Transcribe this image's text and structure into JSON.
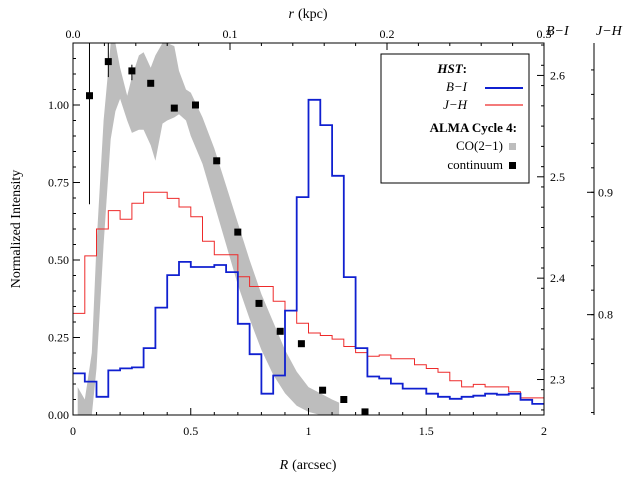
{
  "chart_data": {
    "type": "line",
    "xlabel": "R (arcsec)",
    "xlabel_var": "R",
    "xlabel_unit": "(arcsec)",
    "ylabel": "Normalized Intensity",
    "top_xlabel_var": "r",
    "top_xlabel_unit": "(kpc)",
    "right_axis_1_label": "B−I",
    "right_axis_2_label": "J−H",
    "xlim": [
      0,
      2
    ],
    "ylim": [
      0,
      1.2
    ],
    "top_xlim": [
      0,
      0.3
    ],
    "right1_ylim": [
      2.265,
      2.632
    ],
    "right2_ylim": [
      0.718,
      1.022
    ],
    "x_ticks": [
      "0",
      "0.5",
      "1",
      "1.5",
      "2"
    ],
    "y_ticks": [
      "0.00",
      "0.25",
      "0.50",
      "0.75",
      "1.00"
    ],
    "top_ticks": [
      "0.0",
      "0.1",
      "0.2",
      "0.3"
    ],
    "right1_ticks": [
      "2.3",
      "2.4",
      "2.5",
      "2.6"
    ],
    "right2_ticks": [
      "0.8",
      "0.9"
    ],
    "legend": {
      "position": "top-right",
      "group1_title": "HST",
      "group1_title_suffix": ":",
      "bi_label": "B−I",
      "jh_label": "J−H",
      "group2_title": "ALMA Cycle 4:",
      "co_label": "CO(2−1)",
      "cont_label": "continuum"
    },
    "colors": {
      "bi": "#1020d0",
      "jh": "#ee2a2a",
      "co": "#bdbdbd",
      "continuum": "#000000"
    },
    "series": [
      {
        "name": "B−I",
        "axis": "right1",
        "step": true,
        "x": [
          0,
          0.05,
          0.1,
          0.15,
          0.2,
          0.25,
          0.3,
          0.35,
          0.4,
          0.45,
          0.5,
          0.55,
          0.6,
          0.65,
          0.7,
          0.75,
          0.8,
          0.85,
          0.9,
          0.95,
          1.0,
          1.05,
          1.1,
          1.15,
          1.2,
          1.25,
          1.3,
          1.35,
          1.4,
          1.45,
          1.5,
          1.55,
          1.6,
          1.65,
          1.7,
          1.75,
          1.8,
          1.85,
          1.9,
          1.95,
          2.0
        ],
        "values": [
          2.306,
          2.298,
          2.283,
          2.309,
          2.311,
          2.312,
          2.331,
          2.371,
          2.403,
          2.416,
          2.411,
          2.411,
          2.413,
          2.406,
          2.355,
          2.325,
          2.286,
          2.304,
          2.368,
          2.48,
          2.576,
          2.551,
          2.501,
          2.401,
          2.331,
          2.303,
          2.301,
          2.296,
          2.291,
          2.291,
          2.286,
          2.283,
          2.281,
          2.283,
          2.284,
          2.286,
          2.285,
          2.286,
          2.28,
          2.276,
          2.276
        ]
      },
      {
        "name": "J−H",
        "axis": "right2",
        "step": true,
        "x": [
          0,
          0.05,
          0.1,
          0.15,
          0.2,
          0.25,
          0.3,
          0.35,
          0.4,
          0.45,
          0.5,
          0.55,
          0.6,
          0.65,
          0.7,
          0.75,
          0.8,
          0.85,
          0.9,
          0.95,
          1.0,
          1.05,
          1.1,
          1.15,
          1.2,
          1.25,
          1.3,
          1.35,
          1.4,
          1.45,
          1.5,
          1.55,
          1.6,
          1.65,
          1.7,
          1.75,
          1.8,
          1.85,
          1.9,
          1.95,
          2.0
        ],
        "values": [
          0.801,
          0.848,
          0.87,
          0.885,
          0.878,
          0.891,
          0.9,
          0.9,
          0.895,
          0.888,
          0.88,
          0.86,
          0.849,
          0.849,
          0.831,
          0.823,
          0.823,
          0.811,
          0.803,
          0.793,
          0.785,
          0.783,
          0.78,
          0.774,
          0.769,
          0.766,
          0.767,
          0.764,
          0.764,
          0.759,
          0.756,
          0.753,
          0.746,
          0.741,
          0.743,
          0.741,
          0.741,
          0.737,
          0.732,
          0.732,
          0.732
        ]
      },
      {
        "name": "CO(2−1)",
        "axis": "left",
        "band": true,
        "x": [
          0.02,
          0.05,
          0.08,
          0.1,
          0.13,
          0.16,
          0.18,
          0.2,
          0.23,
          0.25,
          0.28,
          0.3,
          0.33,
          0.35,
          0.38,
          0.4,
          0.43,
          0.45,
          0.48,
          0.5,
          0.55,
          0.6,
          0.65,
          0.7,
          0.75,
          0.8,
          0.85,
          0.9,
          0.95,
          1.0,
          1.05,
          1.1,
          1.13
        ],
        "upper": [
          0.09,
          0.05,
          0.2,
          0.55,
          0.95,
          1.25,
          1.22,
          1.12,
          1.03,
          1.09,
          1.16,
          1.17,
          1.12,
          1.16,
          1.22,
          1.3,
          1.19,
          1.11,
          1.05,
          1.04,
          0.96,
          0.86,
          0.74,
          0.62,
          0.5,
          0.39,
          0.3,
          0.21,
          0.14,
          0.09,
          0.07,
          0.05,
          0.04
        ],
        "lower": [
          0.0,
          0.0,
          0.0,
          0.15,
          0.55,
          0.89,
          0.98,
          1.02,
          0.95,
          0.91,
          0.92,
          0.92,
          0.87,
          0.82,
          0.94,
          0.95,
          0.96,
          0.97,
          0.95,
          0.9,
          0.81,
          0.68,
          0.55,
          0.42,
          0.31,
          0.21,
          0.13,
          0.07,
          0.03,
          0.01,
          0.0,
          0.0,
          0.0
        ]
      },
      {
        "name": "continuum",
        "axis": "left",
        "marker": "square",
        "x": [
          0.07,
          0.15,
          0.25,
          0.33,
          0.43,
          0.52,
          0.61,
          0.7,
          0.79,
          0.88,
          0.97,
          1.06,
          1.15,
          1.24
        ],
        "values": [
          1.03,
          1.14,
          1.11,
          1.07,
          0.99,
          1.0,
          0.82,
          0.59,
          0.36,
          0.27,
          0.23,
          0.08,
          0.05,
          0.01
        ]
      }
    ],
    "errorbars": [
      {
        "x": 0.07,
        "low": 0.68,
        "high": 1.28
      },
      {
        "x": 0.15,
        "low": 1.09,
        "high": 1.33
      },
      {
        "x": 0.25,
        "low": 1.08,
        "high": 1.13
      }
    ]
  }
}
